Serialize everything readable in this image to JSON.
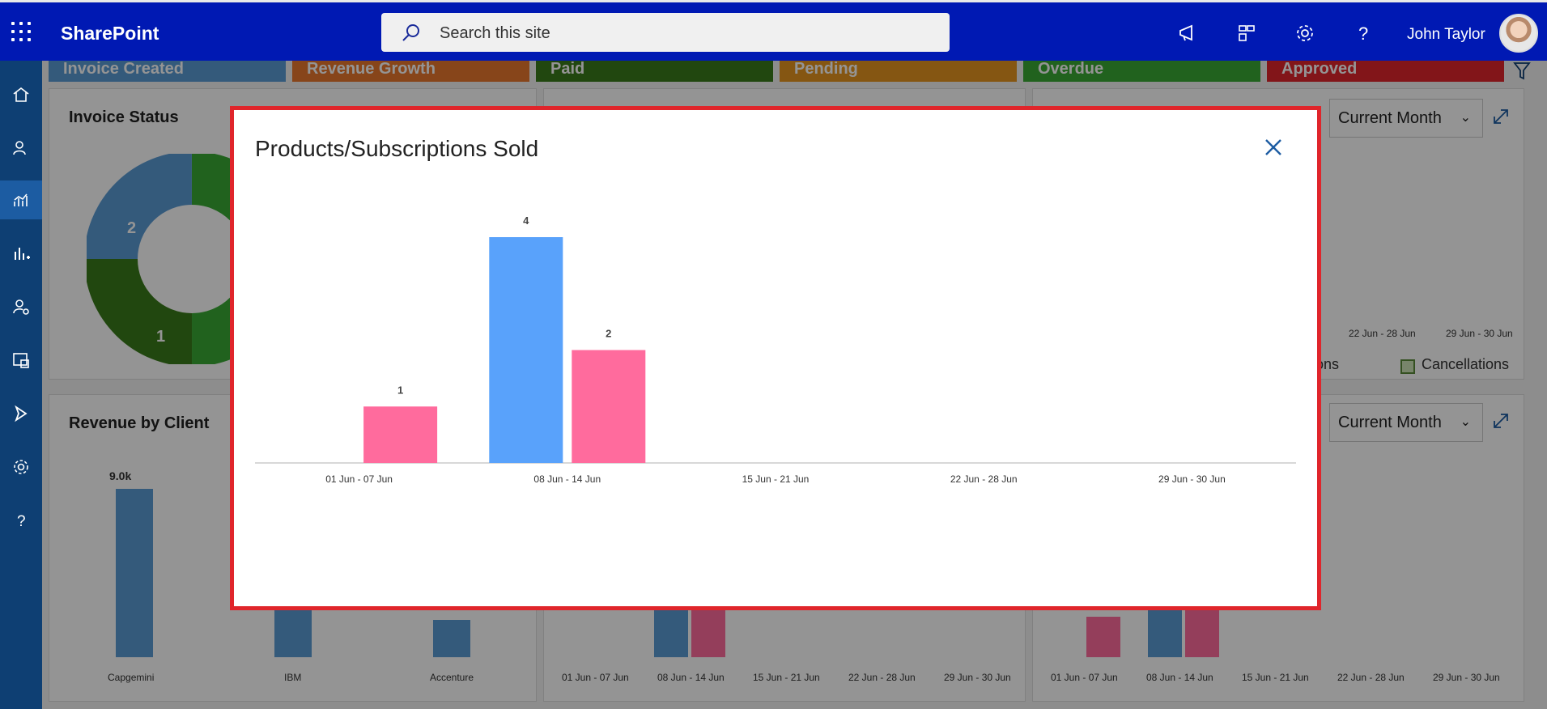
{
  "header": {
    "brand": "SharePoint",
    "search_placeholder": "Search this site",
    "user_name": "John Taylor",
    "icons": [
      "megaphone-icon",
      "sites-icon",
      "settings-gear-icon",
      "help-icon"
    ]
  },
  "sidebar": {
    "items": [
      "home-icon",
      "people-icon",
      "analytics-icon",
      "reports-icon",
      "user-settings-icon",
      "assets-icon",
      "send-icon",
      "gear-icon",
      "help-icon"
    ],
    "active_index": 2
  },
  "status_tiles": [
    {
      "label": "Invoice Created",
      "color": "#5b9bd5"
    },
    {
      "label": "Revenue Growth",
      "color": "#e8772e"
    },
    {
      "label": "Paid",
      "color": "#3a7a1a"
    },
    {
      "label": "Pending",
      "color": "#e6951f"
    },
    {
      "label": "Overdue",
      "color": "#3aaa35"
    },
    {
      "label": "Approved",
      "color": "#e0252b"
    }
  ],
  "cards": {
    "invoice_status": {
      "title": "Invoice Status",
      "donut_labels": [
        "2",
        "1"
      ]
    },
    "top_right": {
      "dropdown": "Current Month",
      "x_labels": [
        "22 Jun - 28 Jun",
        "29 Jun - 30 Jun"
      ],
      "legend": [
        "tions",
        "Cancellations"
      ]
    },
    "revenue_by_client": {
      "title": "Revenue by Client",
      "top_value": "9.0k",
      "clients": [
        "Capgemini",
        "IBM",
        "Accenture"
      ]
    },
    "bottom_middle": {
      "x_labels": [
        "01 Jun - 07 Jun",
        "08 Jun - 14 Jun",
        "15 Jun - 21 Jun",
        "22 Jun - 28 Jun",
        "29 Jun - 30 Jun"
      ]
    },
    "bottom_right": {
      "dropdown": "Current Month",
      "x_labels": [
        "01 Jun - 07 Jun",
        "08 Jun - 14 Jun",
        "15 Jun - 21 Jun",
        "22 Jun - 28 Jun",
        "29 Jun - 30 Jun"
      ]
    }
  },
  "modal": {
    "title": "Products/Subscriptions Sold",
    "close_icon": "close-icon"
  },
  "chart_data": {
    "type": "bar",
    "title": "Products/Subscriptions Sold",
    "xlabel": "",
    "ylabel": "",
    "categories": [
      "01 Jun - 07 Jun",
      "08 Jun - 14 Jun",
      "15 Jun - 21 Jun",
      "22 Jun - 28 Jun",
      "29 Jun - 30 Jun"
    ],
    "series": [
      {
        "color": "#59a2fb",
        "values": [
          0,
          4,
          0,
          0,
          0
        ]
      },
      {
        "color": "#ff6b9d",
        "values": [
          1,
          2,
          0,
          0,
          0
        ]
      }
    ],
    "ylim": [
      0,
      4
    ],
    "grid": false,
    "legend": "none"
  }
}
